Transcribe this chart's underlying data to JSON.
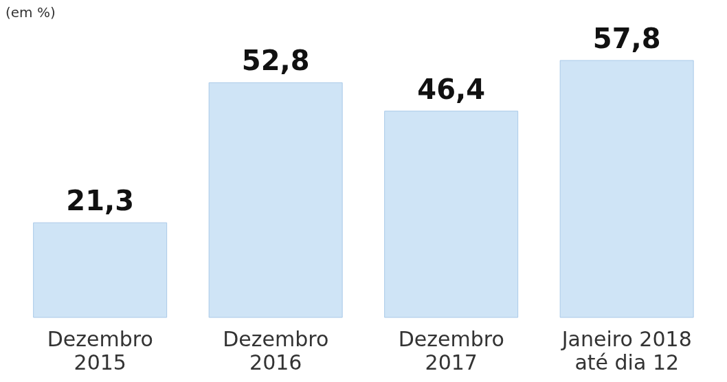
{
  "chart_data": {
    "type": "bar",
    "subtitle": "(em %)",
    "categories": [
      "Dezembro\n2015",
      "Dezembro\n2016",
      "Dezembro\n2017",
      "Janeiro 2018\naté dia 12"
    ],
    "values": [
      21.3,
      52.8,
      46.4,
      57.8
    ],
    "color": "#cfe4f6",
    "data_labels": true,
    "value_labels": [
      "21,3",
      "52,8",
      "46,4",
      "57,8"
    ]
  }
}
